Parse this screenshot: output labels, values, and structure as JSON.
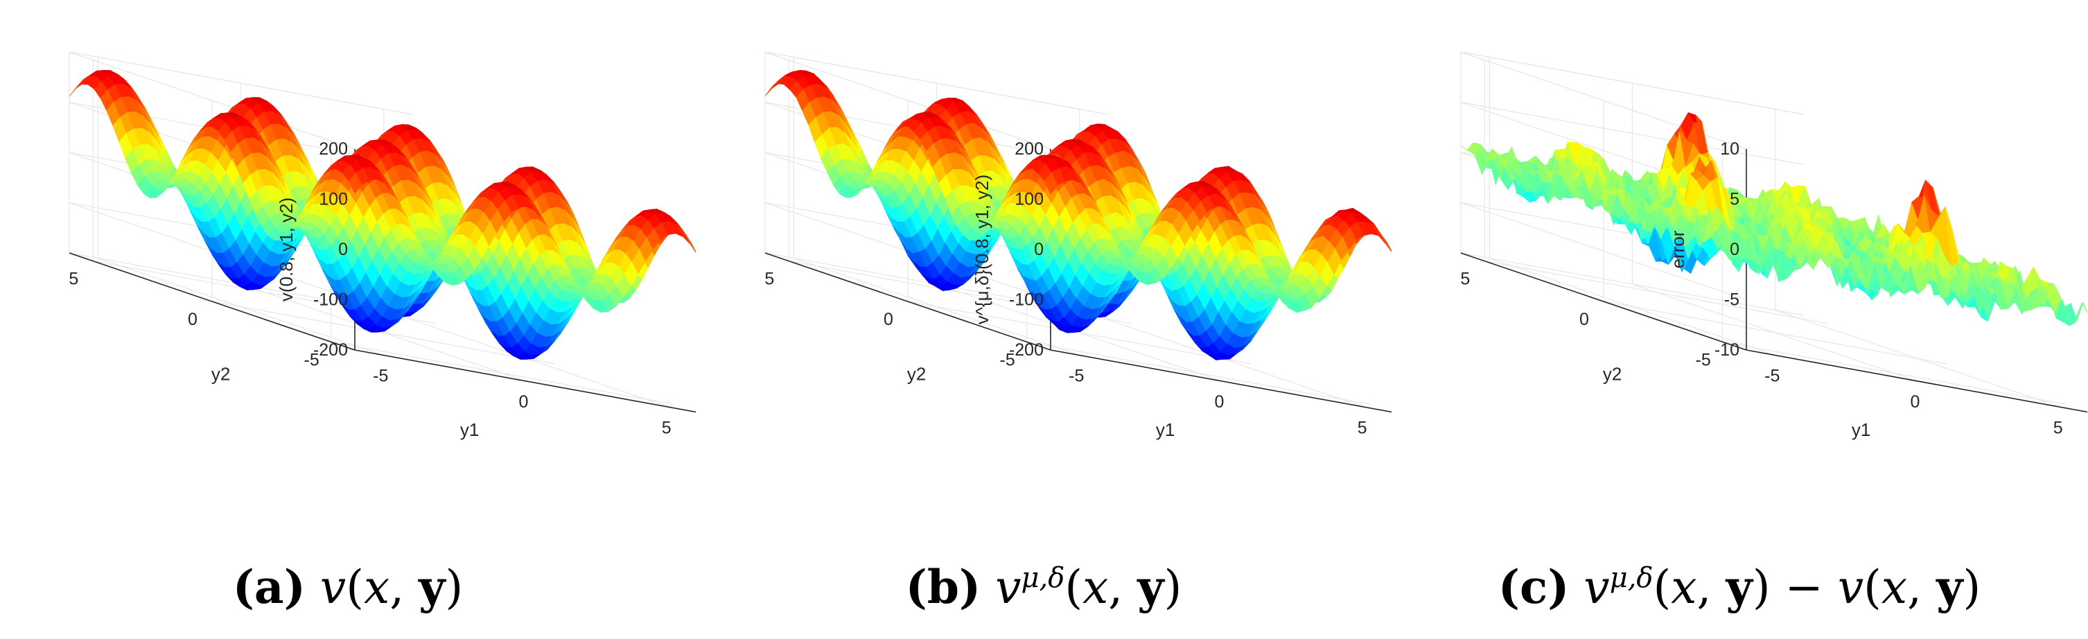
{
  "chart_data": [
    {
      "type": "surface",
      "panel_letter": "(a)",
      "caption_math": "v(x, y)",
      "xlabel": "y1",
      "ylabel": "y2",
      "zlabel": "v(0.8, y1, y2)",
      "xlim": [
        -6,
        6
      ],
      "ylim": [
        -6,
        6
      ],
      "zlim": [
        -200,
        200
      ],
      "xticks": [
        "-5",
        "0",
        "5"
      ],
      "yticks": [
        "-5",
        "0",
        "5"
      ],
      "zticks": [
        "-200",
        "-100",
        "0",
        "100",
        "200"
      ],
      "grid": true,
      "colormap": "jet",
      "noise": 0
    },
    {
      "type": "surface",
      "panel_letter": "(b)",
      "caption_math": "v^{μ,δ}(x, y)",
      "xlabel": "y1",
      "ylabel": "y2",
      "zlabel": "v^{μ,δ}(0.8, y1, y2)",
      "xlim": [
        -6,
        6
      ],
      "ylim": [
        -6,
        6
      ],
      "zlim": [
        -200,
        200
      ],
      "xticks": [
        "-5",
        "0",
        "5"
      ],
      "yticks": [
        "-5",
        "0",
        "5"
      ],
      "zticks": [
        "-200",
        "-100",
        "0",
        "100",
        "200"
      ],
      "grid": true,
      "colormap": "jet",
      "noise": 0.02
    },
    {
      "type": "surface",
      "panel_letter": "(c)",
      "caption_math": "v^{μ,δ}(x, y) − v(x, y)",
      "xlabel": "y1",
      "ylabel": "y2",
      "zlabel": "error",
      "xlim": [
        -6,
        6
      ],
      "ylim": [
        -6,
        6
      ],
      "zlim": [
        -10,
        10
      ],
      "xticks": [
        "-5",
        "0",
        "5"
      ],
      "yticks": [
        "-5",
        "0",
        "5"
      ],
      "zticks": [
        "-10",
        "-5",
        "0",
        "5",
        "10"
      ],
      "grid": true,
      "colormap": "jet",
      "noise": 1
    }
  ]
}
